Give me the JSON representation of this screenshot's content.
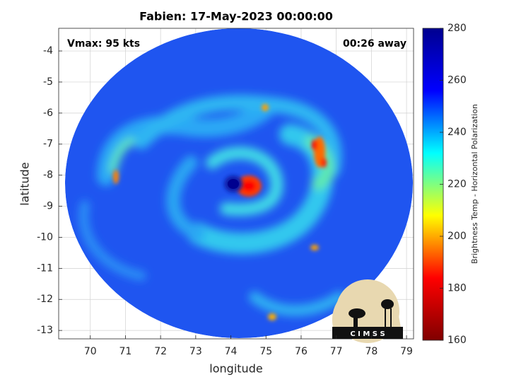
{
  "chart_data": {
    "type": "image",
    "title": "Fabien: 17-May-2023 00:00:00",
    "xlabel": "longitude",
    "ylabel": "latitude",
    "annotations": [
      "Vmax: 95 kts",
      "00:26 away"
    ],
    "logo": "C I M S S",
    "xlim": [
      69.1,
      79.2
    ],
    "xticks": [
      70,
      71,
      72,
      73,
      74,
      75,
      76,
      77,
      78,
      79
    ],
    "ylim": [
      -13.27,
      -3.27
    ],
    "yticks": [
      -13,
      -12,
      -11,
      -10,
      -9,
      -8,
      -7,
      -6,
      -5,
      -4
    ],
    "grid": true,
    "colorbar": {
      "label": "Brightness Temp - Horizontal Polarization",
      "clim": [
        160,
        280
      ],
      "ticks": [
        160,
        180,
        200,
        220,
        240,
        260,
        280
      ],
      "colormap": [
        "#800000",
        "#ff0000",
        "#ffff00",
        "#00ffff",
        "#0000ff",
        "#00008f"
      ]
    }
  }
}
